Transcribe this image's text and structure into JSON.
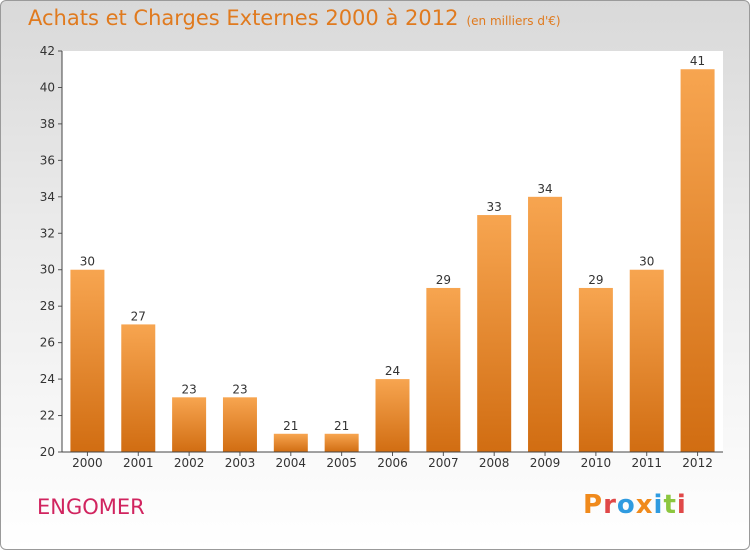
{
  "header": {
    "title": "Achats et Charges Externes 2000 à 2012",
    "subtitle": "(en milliers d'€)"
  },
  "footer": {
    "location": "ENGOMER",
    "logo_text": "Proxiti"
  },
  "colors": {
    "title": "#e07a1e",
    "location": "#d1245f",
    "bar_top": "#f7a550",
    "bar_bottom": "#d16d12",
    "logo_letters": [
      "#f08a1c",
      "#e04848",
      "#2f9be0",
      "#f08a1c",
      "#2f9be0",
      "#8cc63f",
      "#e04848"
    ]
  },
  "chart_data": {
    "type": "bar",
    "categories": [
      "2000",
      "2001",
      "2002",
      "2003",
      "2004",
      "2005",
      "2006",
      "2007",
      "2008",
      "2009",
      "2010",
      "2011",
      "2012"
    ],
    "values": [
      30,
      27,
      23,
      23,
      21,
      21,
      24,
      29,
      33,
      34,
      29,
      30,
      41
    ],
    "ylim": [
      20,
      42
    ],
    "yticks": [
      20,
      22,
      24,
      26,
      28,
      30,
      32,
      34,
      36,
      38,
      40,
      42
    ],
    "grid": false,
    "data_labels": true
  }
}
